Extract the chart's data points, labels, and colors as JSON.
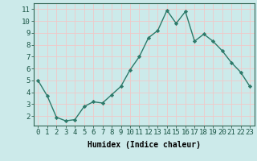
{
  "x": [
    0,
    1,
    2,
    3,
    4,
    5,
    6,
    7,
    8,
    9,
    10,
    11,
    12,
    13,
    14,
    15,
    16,
    17,
    18,
    19,
    20,
    21,
    22,
    23
  ],
  "y": [
    5.0,
    3.7,
    1.9,
    1.6,
    1.7,
    2.8,
    3.2,
    3.1,
    3.8,
    4.5,
    5.9,
    7.0,
    8.6,
    9.2,
    10.9,
    9.8,
    10.8,
    8.3,
    8.9,
    8.3,
    7.5,
    6.5,
    5.7,
    4.5
  ],
  "line_color": "#2d7a6a",
  "marker": "D",
  "marker_size": 2.2,
  "bg_color": "#cceaea",
  "plot_bg_color": "#cceaea",
  "grid_color": "#f0c8c8",
  "xlabel": "Humidex (Indice chaleur)",
  "xlim": [
    -0.5,
    23.5
  ],
  "ylim": [
    1.2,
    11.5
  ],
  "yticks": [
    2,
    3,
    4,
    5,
    6,
    7,
    8,
    9,
    10,
    11
  ],
  "xticks": [
    0,
    1,
    2,
    3,
    4,
    5,
    6,
    7,
    8,
    9,
    10,
    11,
    12,
    13,
    14,
    15,
    16,
    17,
    18,
    19,
    20,
    21,
    22,
    23
  ],
  "xlabel_fontsize": 7,
  "tick_fontsize": 6.5,
  "line_width": 1.0
}
